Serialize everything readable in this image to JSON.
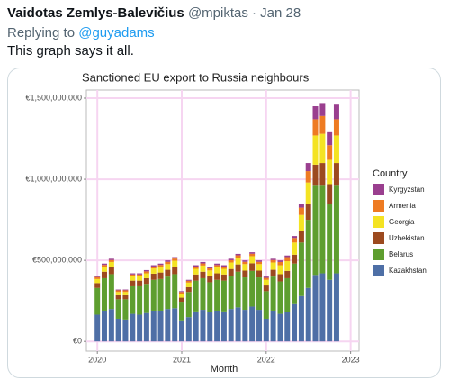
{
  "tweet": {
    "author": "Vaidotas Zemlys-Balevičius",
    "meta": "@mpiktas · Jan 28",
    "reply_prefix": "Replying to",
    "reply_to": "@guyadams",
    "text": "This graph says it all."
  },
  "chart_data": {
    "type": "stacked_bar",
    "title": "Sanctioned EU export to Russia neighbours",
    "x_label": "Month",
    "legend_title": "Country",
    "x": [
      2020,
      2020.083,
      2020.167,
      2020.25,
      2020.333,
      2020.417,
      2020.5,
      2020.583,
      2020.667,
      2020.75,
      2020.833,
      2020.917,
      2021,
      2021.083,
      2021.167,
      2021.25,
      2021.333,
      2021.417,
      2021.5,
      2021.583,
      2021.667,
      2021.75,
      2021.833,
      2021.917,
      2022,
      2022.083,
      2022.167,
      2022.25,
      2022.333,
      2022.417,
      2022.5,
      2022.583,
      2022.667,
      2022.75,
      2022.833
    ],
    "xlim": [
      2019.87,
      2023.1
    ],
    "xticks": [
      2020,
      2021,
      2022,
      2023
    ],
    "ylim": [
      -60000000,
      1550000000
    ],
    "yticks": [
      {
        "value": 0,
        "label": "€0"
      },
      {
        "value": 500000000,
        "label": "€500,000,000"
      },
      {
        "value": 1000000000,
        "label": "€1,000,000,000"
      },
      {
        "value": 1500000000,
        "label": "€1,500,000,000"
      }
    ],
    "grid": true,
    "series": [
      {
        "name": "Kazakhstan",
        "color": "#4e6fa6",
        "values": [
          165000000,
          190000000,
          200000000,
          140000000,
          135000000,
          170000000,
          165000000,
          175000000,
          190000000,
          190000000,
          200000000,
          205000000,
          130000000,
          150000000,
          185000000,
          195000000,
          180000000,
          190000000,
          185000000,
          200000000,
          210000000,
          195000000,
          215000000,
          195000000,
          140000000,
          190000000,
          170000000,
          180000000,
          230000000,
          280000000,
          330000000,
          410000000,
          420000000,
          380000000,
          420000000
        ]
      },
      {
        "name": "Belarus",
        "color": "#5e9e2f",
        "values": [
          165000000,
          200000000,
          215000000,
          120000000,
          125000000,
          170000000,
          175000000,
          180000000,
          190000000,
          195000000,
          200000000,
          210000000,
          115000000,
          155000000,
          190000000,
          195000000,
          185000000,
          190000000,
          190000000,
          205000000,
          220000000,
          200000000,
          220000000,
          200000000,
          170000000,
          210000000,
          200000000,
          210000000,
          250000000,
          330000000,
          420000000,
          550000000,
          540000000,
          470000000,
          540000000
        ]
      },
      {
        "name": "Uzbekistan",
        "color": "#9c4a1f",
        "values": [
          30000000,
          40000000,
          45000000,
          25000000,
          25000000,
          35000000,
          35000000,
          35000000,
          38000000,
          40000000,
          42000000,
          45000000,
          25000000,
          30000000,
          38000000,
          40000000,
          38000000,
          40000000,
          38000000,
          42000000,
          45000000,
          42000000,
          47000000,
          42000000,
          35000000,
          42000000,
          45000000,
          45000000,
          55000000,
          70000000,
          100000000,
          130000000,
          140000000,
          120000000,
          140000000
        ]
      },
      {
        "name": "Georgia",
        "color": "#f4e323",
        "values": [
          25000000,
          30000000,
          30000000,
          20000000,
          20000000,
          28000000,
          28000000,
          30000000,
          32000000,
          35000000,
          35000000,
          38000000,
          25000000,
          28000000,
          35000000,
          38000000,
          35000000,
          38000000,
          35000000,
          40000000,
          42000000,
          40000000,
          44000000,
          40000000,
          35000000,
          45000000,
          55000000,
          60000000,
          75000000,
          100000000,
          130000000,
          180000000,
          180000000,
          150000000,
          170000000
        ]
      },
      {
        "name": "Armenia",
        "color": "#ee7b22",
        "values": [
          12000000,
          12000000,
          12000000,
          10000000,
          10000000,
          10000000,
          10000000,
          12000000,
          12000000,
          12000000,
          14000000,
          13000000,
          10000000,
          11000000,
          13000000,
          13000000,
          13000000,
          13000000,
          13000000,
          14000000,
          14000000,
          14000000,
          15000000,
          14000000,
          12000000,
          15000000,
          20000000,
          25000000,
          28000000,
          45000000,
          70000000,
          100000000,
          110000000,
          90000000,
          100000000
        ]
      },
      {
        "name": "Kyrgyzstan",
        "color": "#9a3f8f",
        "values": [
          8000000,
          8000000,
          8000000,
          5000000,
          5000000,
          7000000,
          7000000,
          8000000,
          8000000,
          8000000,
          9000000,
          9000000,
          5000000,
          6000000,
          9000000,
          9000000,
          9000000,
          9000000,
          9000000,
          9000000,
          9000000,
          9000000,
          9000000,
          9000000,
          8000000,
          8000000,
          10000000,
          10000000,
          12000000,
          25000000,
          50000000,
          80000000,
          80000000,
          80000000,
          90000000
        ]
      }
    ]
  }
}
